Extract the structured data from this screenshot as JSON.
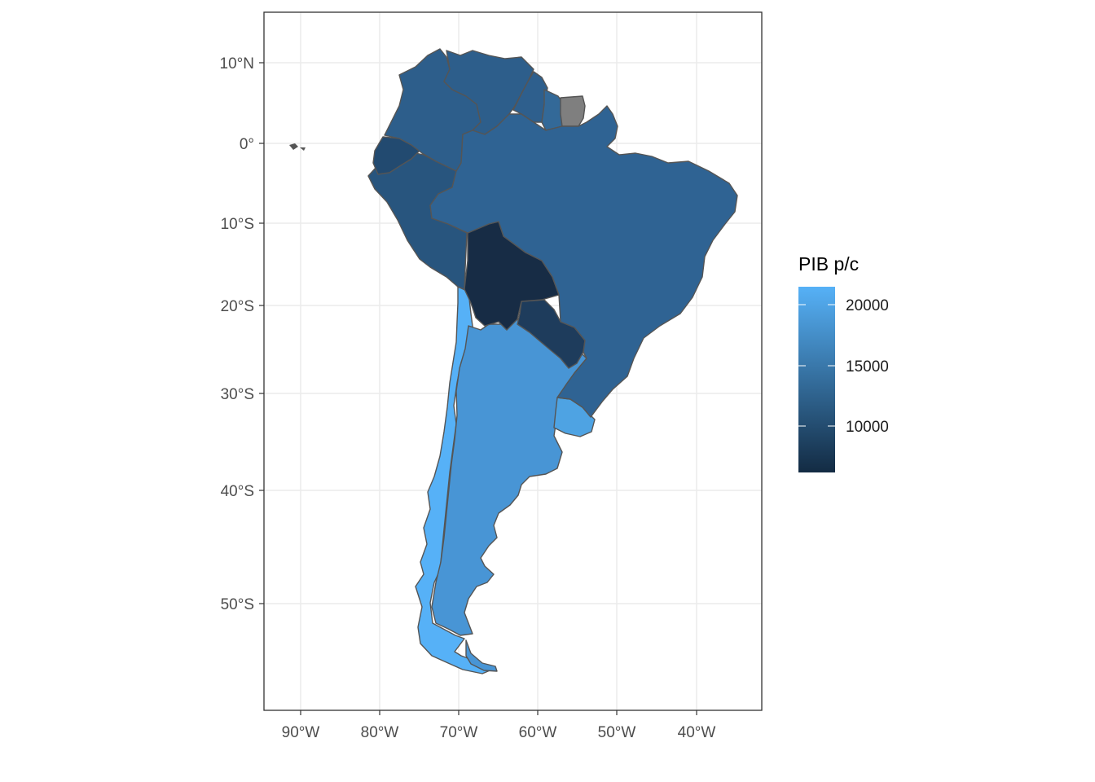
{
  "map": {
    "x_axis_labels": [
      "90°W",
      "80°W",
      "70°W",
      "60°W",
      "50°W",
      "40°W"
    ],
    "y_axis_labels": [
      "10°N",
      "0°",
      "10°S",
      "20°S",
      "30°S",
      "40°S",
      "50°S"
    ],
    "countries": [
      {
        "name": "Venezuela",
        "value": 12800,
        "color": "#2d5e8b"
      },
      {
        "name": "Colombia",
        "value": 13200,
        "color": "#2d5e8b"
      },
      {
        "name": "Guyana",
        "value": 13000,
        "color": "#2e5f8d"
      },
      {
        "name": "Suriname",
        "value": 14500,
        "color": "#336998"
      },
      {
        "name": "French Guiana",
        "value": null,
        "color": "#7f7f7f"
      },
      {
        "name": "Ecuador",
        "value": 10500,
        "color": "#224a70"
      },
      {
        "name": "Peru",
        "value": 11800,
        "color": "#28557e"
      },
      {
        "name": "Brazil",
        "value": 14800,
        "color": "#2f6393"
      },
      {
        "name": "Bolivia",
        "value": 6500,
        "color": "#172c45"
      },
      {
        "name": "Paraguay",
        "value": 8800,
        "color": "#1e3c5c"
      },
      {
        "name": "Uruguay",
        "value": 20000,
        "color": "#4ea3e3"
      },
      {
        "name": "Argentina",
        "value": 18500,
        "color": "#4895d5"
      },
      {
        "name": "Chile",
        "value": 21500,
        "color": "#56b1f7"
      }
    ]
  },
  "legend": {
    "title": "PIB p/c",
    "labels": [
      "20000",
      "15000",
      "10000"
    ],
    "color_low": "#132b43",
    "color_high": "#56b1f7",
    "na_color": "#7f7f7f"
  }
}
